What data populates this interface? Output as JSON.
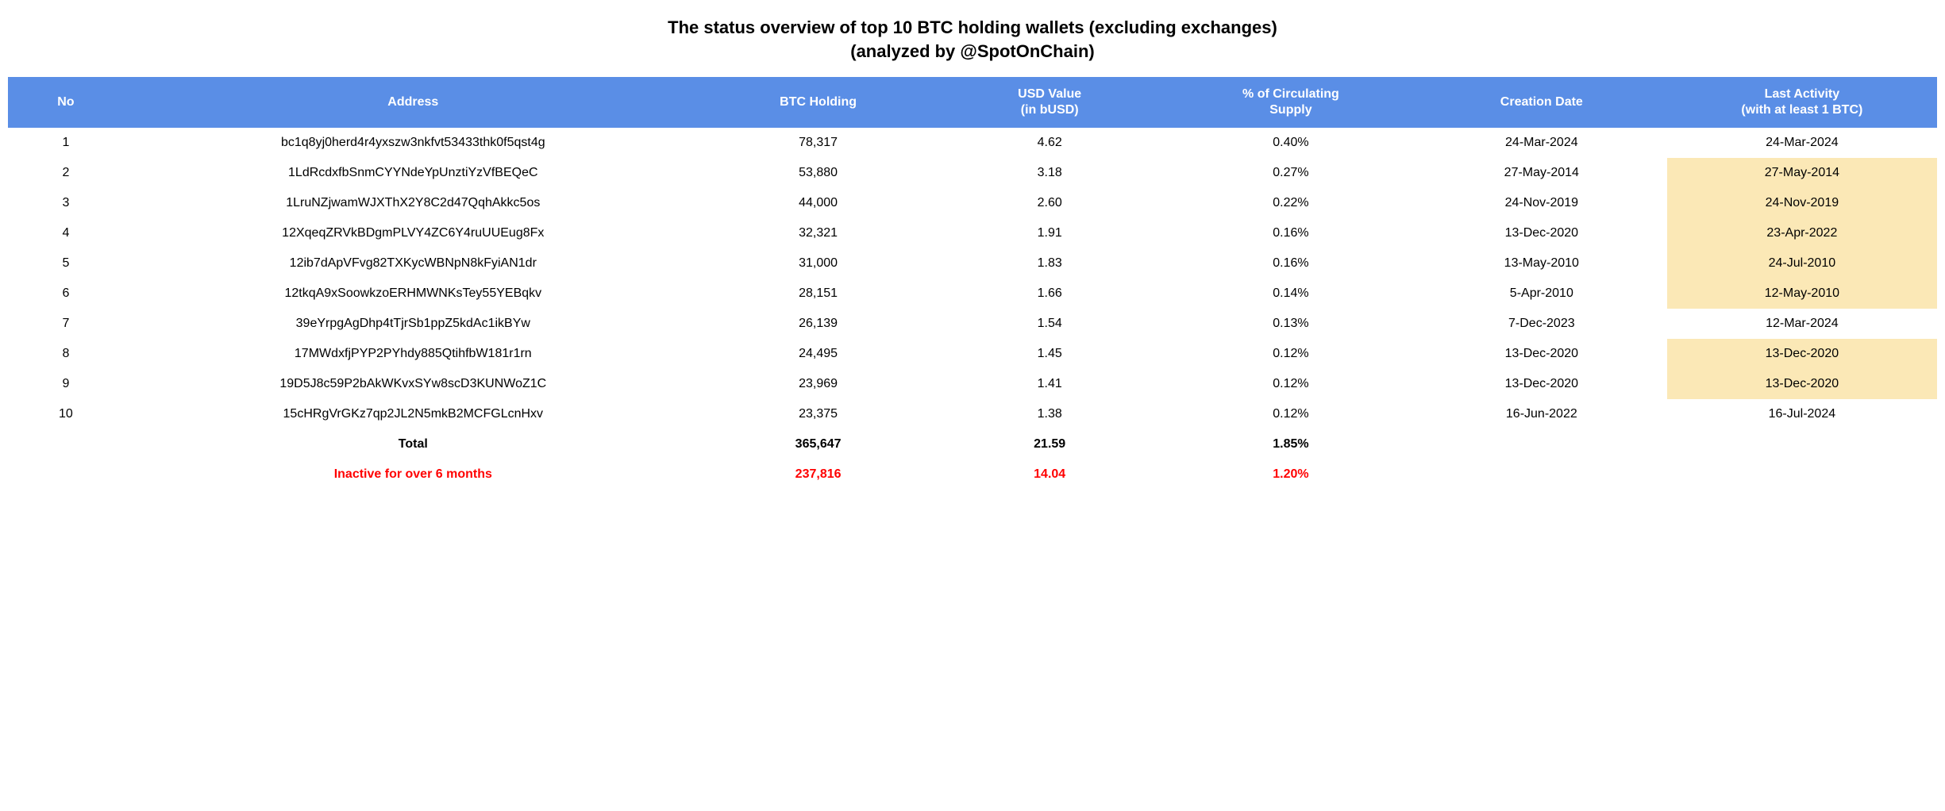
{
  "title_line1": "The status overview of top 10 BTC holding wallets (excluding exchanges)",
  "title_line2": "(analyzed by @SpotOnChain)",
  "colors": {
    "header_bg": "#5a8ee6",
    "header_text": "#ffffff",
    "highlight_bg": "#fbe8b6",
    "inactive_text": "#ff0000",
    "body_text": "#000000",
    "page_bg": "#ffffff"
  },
  "columns": {
    "no": "No",
    "address": "Address",
    "btc": "BTC Holding",
    "usd_l1": "USD Value",
    "usd_l2": "(in bUSD)",
    "pct_l1": "% of Circulating",
    "pct_l2": "Supply",
    "created": "Creation Date",
    "last_l1": "Last Activity",
    "last_l2": "(with at least 1 BTC)"
  },
  "rows": [
    {
      "no": "1",
      "address": "bc1q8yj0herd4r4yxszw3nkfvt53433thk0f5qst4g",
      "btc": "78,317",
      "usd": "4.62",
      "pct": "0.40%",
      "created": "24-Mar-2024",
      "last": "24-Mar-2024",
      "last_hl": false
    },
    {
      "no": "2",
      "address": "1LdRcdxfbSnmCYYNdeYpUnztiYzVfBEQeC",
      "btc": "53,880",
      "usd": "3.18",
      "pct": "0.27%",
      "created": "27-May-2014",
      "last": "27-May-2014",
      "last_hl": true
    },
    {
      "no": "3",
      "address": "1LruNZjwamWJXThX2Y8C2d47QqhAkkc5os",
      "btc": "44,000",
      "usd": "2.60",
      "pct": "0.22%",
      "created": "24-Nov-2019",
      "last": "24-Nov-2019",
      "last_hl": true
    },
    {
      "no": "4",
      "address": "12XqeqZRVkBDgmPLVY4ZC6Y4ruUUEug8Fx",
      "btc": "32,321",
      "usd": "1.91",
      "pct": "0.16%",
      "created": "13-Dec-2020",
      "last": "23-Apr-2022",
      "last_hl": true
    },
    {
      "no": "5",
      "address": "12ib7dApVFvg82TXKycWBNpN8kFyiAN1dr",
      "btc": "31,000",
      "usd": "1.83",
      "pct": "0.16%",
      "created": "13-May-2010",
      "last": "24-Jul-2010",
      "last_hl": true
    },
    {
      "no": "6",
      "address": "12tkqA9xSoowkzoERHMWNKsTey55YEBqkv",
      "btc": "28,151",
      "usd": "1.66",
      "pct": "0.14%",
      "created": "5-Apr-2010",
      "last": "12-May-2010",
      "last_hl": true
    },
    {
      "no": "7",
      "address": "39eYrpgAgDhp4tTjrSb1ppZ5kdAc1ikBYw",
      "btc": "26,139",
      "usd": "1.54",
      "pct": "0.13%",
      "created": "7-Dec-2023",
      "last": "12-Mar-2024",
      "last_hl": false
    },
    {
      "no": "8",
      "address": "17MWdxfjPYP2PYhdy885QtihfbW181r1rn",
      "btc": "24,495",
      "usd": "1.45",
      "pct": "0.12%",
      "created": "13-Dec-2020",
      "last": "13-Dec-2020",
      "last_hl": true
    },
    {
      "no": "9",
      "address": "19D5J8c59P2bAkWKvxSYw8scD3KUNWoZ1C",
      "btc": "23,969",
      "usd": "1.41",
      "pct": "0.12%",
      "created": "13-Dec-2020",
      "last": "13-Dec-2020",
      "last_hl": true
    },
    {
      "no": "10",
      "address": "15cHRgVrGKz7qp2JL2N5mkB2MCFGLcnHxv",
      "btc": "23,375",
      "usd": "1.38",
      "pct": "0.12%",
      "created": "16-Jun-2022",
      "last": "16-Jul-2024",
      "last_hl": false
    }
  ],
  "total": {
    "label": "Total",
    "btc": "365,647",
    "usd": "21.59",
    "pct": "1.85%"
  },
  "inactive": {
    "label": "Inactive for over 6 months",
    "btc": "237,816",
    "usd": "14.04",
    "pct": "1.20%"
  }
}
